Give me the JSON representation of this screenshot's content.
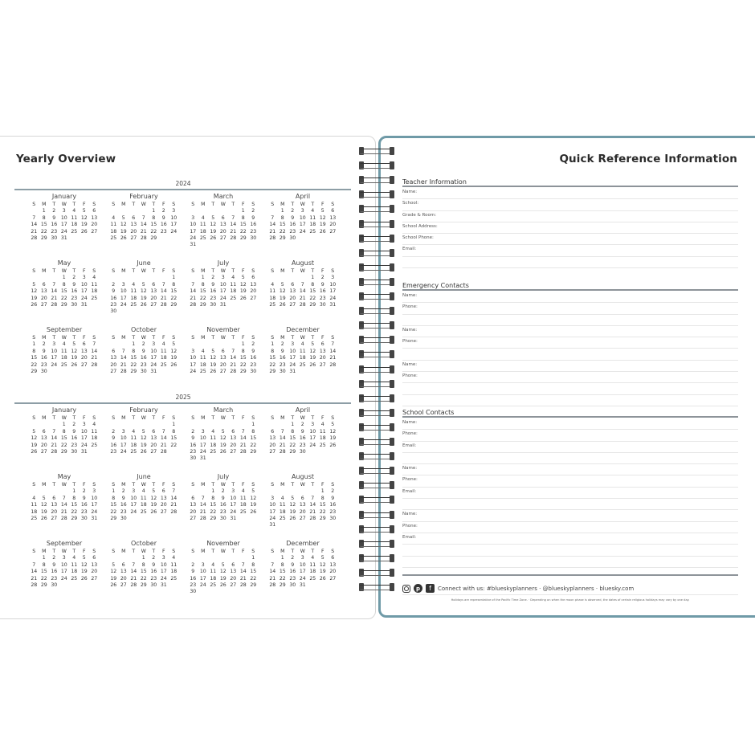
{
  "left_page": {
    "title": "Yearly Overview",
    "weekday_headers": [
      "S",
      "M",
      "T",
      "W",
      "T",
      "F",
      "S"
    ],
    "years": [
      {
        "year": "2024",
        "months": [
          {
            "name": "January",
            "first_weekday": 1,
            "days": 31
          },
          {
            "name": "February",
            "first_weekday": 4,
            "days": 29
          },
          {
            "name": "March",
            "first_weekday": 5,
            "days": 31
          },
          {
            "name": "April",
            "first_weekday": 1,
            "days": 30
          },
          {
            "name": "May",
            "first_weekday": 3,
            "days": 31
          },
          {
            "name": "June",
            "first_weekday": 6,
            "days": 30
          },
          {
            "name": "July",
            "first_weekday": 1,
            "days": 31
          },
          {
            "name": "August",
            "first_weekday": 4,
            "days": 31
          },
          {
            "name": "September",
            "first_weekday": 0,
            "days": 30
          },
          {
            "name": "October",
            "first_weekday": 2,
            "days": 31
          },
          {
            "name": "November",
            "first_weekday": 5,
            "days": 30
          },
          {
            "name": "December",
            "first_weekday": 0,
            "days": 31
          }
        ]
      },
      {
        "year": "2025",
        "months": [
          {
            "name": "January",
            "first_weekday": 3,
            "days": 31
          },
          {
            "name": "February",
            "first_weekday": 6,
            "days": 28
          },
          {
            "name": "March",
            "first_weekday": 6,
            "days": 31
          },
          {
            "name": "April",
            "first_weekday": 2,
            "days": 30
          },
          {
            "name": "May",
            "first_weekday": 4,
            "days": 31
          },
          {
            "name": "June",
            "first_weekday": 0,
            "days": 30
          },
          {
            "name": "July",
            "first_weekday": 2,
            "days": 31
          },
          {
            "name": "August",
            "first_weekday": 5,
            "days": 31
          },
          {
            "name": "September",
            "first_weekday": 1,
            "days": 30
          },
          {
            "name": "October",
            "first_weekday": 3,
            "days": 31
          },
          {
            "name": "November",
            "first_weekday": 6,
            "days": 30
          },
          {
            "name": "December",
            "first_weekday": 1,
            "days": 31
          }
        ]
      }
    ]
  },
  "right_page": {
    "title": "Quick Reference Information",
    "accent_color": "#6f9aa7",
    "sections": [
      {
        "heading": "Teacher Information",
        "rows": [
          "Name:",
          "School:",
          "Grade & Room:",
          "School Address:",
          "School Phone:",
          "Email:",
          ""
        ]
      },
      {
        "heading": "Emergency Contacts",
        "rows": [
          "Name:",
          "Phone:",
          "",
          "Name:",
          "Phone:",
          "",
          "Name:",
          "Phone:",
          "",
          ""
        ]
      },
      {
        "heading": "School Contacts",
        "rows": [
          "Name:",
          "Phone:",
          "Email:",
          "",
          "Name:",
          "Phone:",
          "Email:",
          "",
          "Name:",
          "Phone:",
          "Email:",
          "",
          ""
        ]
      }
    ],
    "footer": {
      "icons": [
        "instagram-icon",
        "pinterest-icon",
        "facebook-icon"
      ],
      "connect_text": "Connect with us: #blueskyplanners · @blueskyplanners · bluesky.com",
      "disclaimer": "Holidays are representative of the Pacific Time Zone.  ·  Depending on when the moon phase is observed, the dates of certain religious holidays may vary by one day."
    }
  }
}
